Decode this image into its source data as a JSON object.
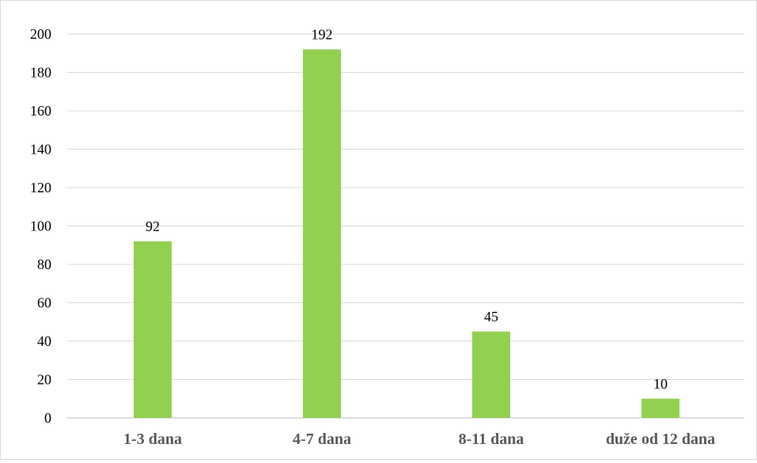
{
  "chart_data": {
    "type": "bar",
    "categories": [
      "1-3 dana",
      "4-7 dana",
      "8-11 dana",
      "duže od 12 dana"
    ],
    "values": [
      92,
      192,
      45,
      10
    ],
    "title": "",
    "xlabel": "",
    "ylabel": "",
    "ylim": [
      0,
      200
    ],
    "yticks": [
      0,
      20,
      40,
      60,
      80,
      100,
      120,
      140,
      160,
      180,
      200
    ],
    "grid": true,
    "legend": "none",
    "bar_color": "#92d050",
    "grid_color": "#d9d9d9"
  }
}
